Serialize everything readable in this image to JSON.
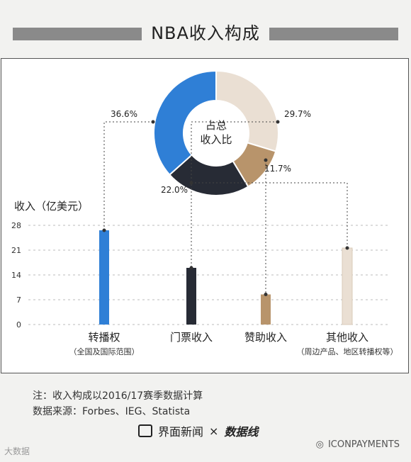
{
  "title": "NBA收入构成",
  "chart_data": [
    {
      "type": "pie",
      "center_label": [
        "占总",
        "收入比"
      ],
      "labels": [
        "转播权",
        "其他收入",
        "赞助收入",
        "门票收入"
      ],
      "values": [
        36.6,
        29.7,
        11.7,
        22.0
      ],
      "value_labels": [
        "36.6%",
        "29.7%",
        "11.7%",
        "22.0%"
      ],
      "colors": [
        "#2f7fd6",
        "#eadfd3",
        "#b8946b",
        "#272b35"
      ]
    },
    {
      "type": "bar",
      "ylabel": "收入（亿美元）",
      "ylim": [
        0,
        28
      ],
      "yticks": [
        "0",
        "7",
        "14",
        "21",
        "28"
      ],
      "categories": [
        "转播权",
        "门票收入",
        "赞助收入",
        "其他收入"
      ],
      "subcategories": [
        "（全国及国际范围）",
        "",
        "",
        "（周边产品、地区转播权等）"
      ],
      "values": [
        26.6,
        16.0,
        8.5,
        21.6
      ],
      "colors": [
        "#2f7fd6",
        "#272b35",
        "#b8946b",
        "#eadfd3"
      ]
    }
  ],
  "notes": {
    "line1": "注：收入构成以2016/17赛季数据计算",
    "line2": "数据来源：Forbes、IEG、Statista"
  },
  "brand": {
    "name": "界面新闻",
    "times": "×",
    "partner": "数据线"
  },
  "watermark": {
    "left": "大数据",
    "right": "ICONPAYMENTS"
  }
}
